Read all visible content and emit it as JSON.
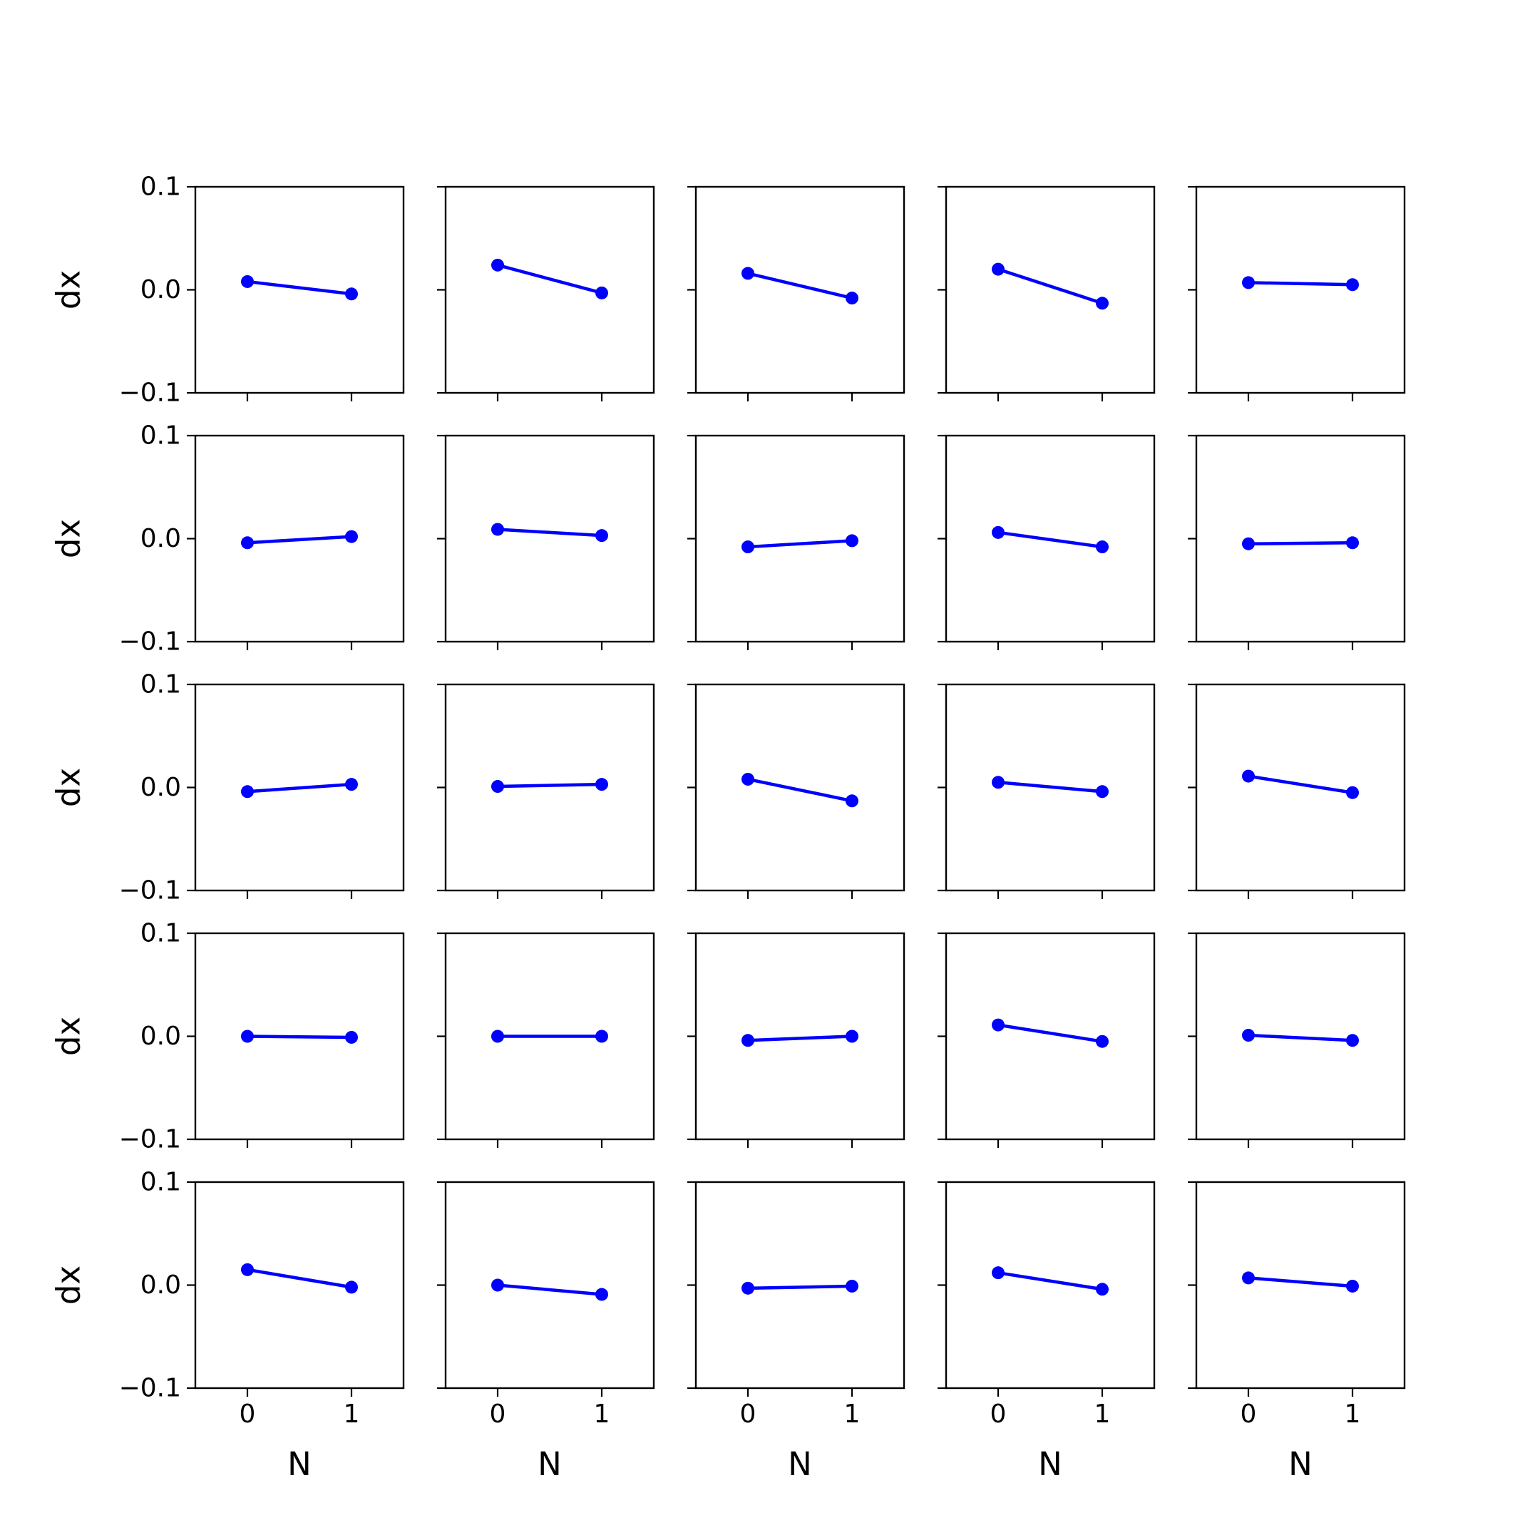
{
  "chart_data": {
    "type": "line",
    "layout": "5x5 subplot grid",
    "line_color": "#0000ff",
    "marker": "circle",
    "xlabel": "N",
    "ylabel": "dx",
    "x": [
      0,
      1
    ],
    "xticks": [
      0,
      1
    ],
    "xlim": [
      -0.5,
      1.5
    ],
    "ylim": [
      -0.1,
      0.1
    ],
    "yticks": [
      -0.1,
      0.0,
      0.1
    ],
    "ytick_labels": [
      "−0.1",
      "0.0",
      "0.1"
    ],
    "xtick_labels": [
      "0",
      "1"
    ],
    "grid": false,
    "panels": [
      [
        {
          "y": [
            0.008,
            -0.004
          ]
        },
        {
          "y": [
            0.024,
            -0.003
          ]
        },
        {
          "y": [
            0.016,
            -0.008
          ]
        },
        {
          "y": [
            0.02,
            -0.013
          ]
        },
        {
          "y": [
            0.007,
            0.005
          ]
        }
      ],
      [
        {
          "y": [
            -0.004,
            0.002
          ]
        },
        {
          "y": [
            0.009,
            0.003
          ]
        },
        {
          "y": [
            -0.008,
            -0.002
          ]
        },
        {
          "y": [
            0.006,
            -0.008
          ]
        },
        {
          "y": [
            -0.005,
            -0.004
          ]
        }
      ],
      [
        {
          "y": [
            -0.004,
            0.003
          ]
        },
        {
          "y": [
            0.001,
            0.003
          ]
        },
        {
          "y": [
            0.008,
            -0.013
          ]
        },
        {
          "y": [
            0.005,
            -0.004
          ]
        },
        {
          "y": [
            0.011,
            -0.005
          ]
        }
      ],
      [
        {
          "y": [
            0.0,
            -0.001
          ]
        },
        {
          "y": [
            0.0,
            0.0
          ]
        },
        {
          "y": [
            -0.004,
            0.0
          ]
        },
        {
          "y": [
            0.011,
            -0.005
          ]
        },
        {
          "y": [
            0.001,
            -0.004
          ]
        }
      ],
      [
        {
          "y": [
            0.015,
            -0.002
          ]
        },
        {
          "y": [
            0.0,
            -0.009
          ]
        },
        {
          "y": [
            -0.003,
            -0.001
          ]
        },
        {
          "y": [
            0.012,
            -0.004
          ]
        },
        {
          "y": [
            0.007,
            -0.001
          ]
        }
      ]
    ]
  }
}
